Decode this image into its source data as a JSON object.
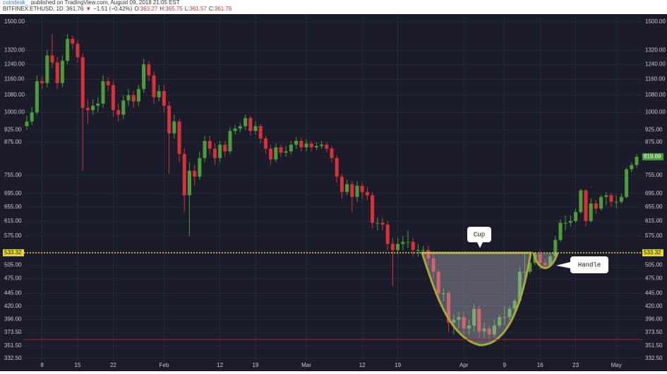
{
  "chart_data": {
    "type": "candlestick",
    "header": {
      "author": "coindesk_",
      "published": "published on TradingView.com, August 09, 2018 21:05 EST",
      "symbol": "BITFINEX:ETHUSD, 1D",
      "last": 361.76,
      "arrow": "▼",
      "change": "−1.51 (−0.42%)",
      "readout": [
        {
          "label": "O:",
          "value": 363.27
        },
        {
          "label": "H:",
          "value": 365.75
        },
        {
          "label": "L:",
          "value": 361.57
        },
        {
          "label": "C:",
          "value": 361.76
        }
      ]
    },
    "annotations": {
      "cup": "Cup",
      "handle": "Handle"
    },
    "level": 533.32,
    "up_color": "#4f9a3a",
    "down_color": "#d9313b",
    "level_color": "#e6dc2e",
    "cursor_color": "#b0202a",
    "log_scale": true,
    "grid": true,
    "ylim": [
      326,
      1543
    ],
    "yticks": [
      {
        "value": 1500,
        "label": "1500.00"
      },
      {
        "value": 1320,
        "label": "1320.00"
      },
      {
        "value": 1240,
        "label": "1240.00"
      },
      {
        "value": 1160,
        "label": "1160.00"
      },
      {
        "value": 1080,
        "label": "1080.00"
      },
      {
        "value": 1000,
        "label": "1000.00"
      },
      {
        "value": 925,
        "label": "925.00"
      },
      {
        "value": 875,
        "label": "875.00"
      },
      {
        "value": 755,
        "label": "755.00"
      },
      {
        "value": 695,
        "label": "695.00"
      },
      {
        "value": 655,
        "label": "655.00"
      },
      {
        "value": 615,
        "label": "615.00"
      },
      {
        "value": 575,
        "label": "575.00"
      },
      {
        "value": 505,
        "label": "505.00"
      },
      {
        "value": 475,
        "label": "475.00"
      },
      {
        "value": 445,
        "label": "445.00"
      },
      {
        "value": 420,
        "label": "420.00"
      },
      {
        "value": 396,
        "label": "396.00"
      },
      {
        "value": 373.5,
        "label": "373.50"
      },
      {
        "value": 351.5,
        "label": "351.50"
      },
      {
        "value": 332.5,
        "label": "332.50"
      }
    ],
    "categories": [
      null,
      null,
      null,
      "8",
      null,
      null,
      null,
      null,
      null,
      null,
      "15",
      null,
      null,
      null,
      null,
      null,
      null,
      "22",
      null,
      null,
      null,
      null,
      null,
      null,
      null,
      null,
      null,
      "Feb",
      null,
      null,
      null,
      null,
      null,
      null,
      null,
      null,
      null,
      null,
      "12",
      null,
      null,
      null,
      null,
      null,
      null,
      "19",
      null,
      null,
      null,
      null,
      null,
      null,
      null,
      null,
      null,
      "Mar",
      null,
      null,
      null,
      null,
      null,
      null,
      null,
      null,
      null,
      null,
      "12",
      null,
      null,
      null,
      null,
      null,
      null,
      "19",
      null,
      null,
      null,
      null,
      null,
      null,
      null,
      null,
      null,
      null,
      null,
      null,
      "Apr",
      null,
      null,
      null,
      null,
      null,
      null,
      null,
      "9",
      null,
      null,
      null,
      null,
      null,
      null,
      "16",
      null,
      null,
      null,
      null,
      null,
      null,
      "23",
      null,
      null,
      null,
      null,
      null,
      null,
      null,
      "May",
      null,
      null,
      null,
      null
    ],
    "open": [
      940,
      960,
      1000,
      1150,
      1140,
      1290,
      1250,
      1140,
      1260,
      1390,
      1360,
      1280,
      1020,
      1010,
      1030,
      1040,
      1150,
      1130,
      1010,
      990,
      1055,
      1080,
      1050,
      1110,
      1240,
      1180,
      1070,
      1100,
      1030,
      910,
      960,
      830,
      690,
      770,
      750,
      815,
      880,
      850,
      815,
      865,
      840,
      920,
      930,
      940,
      975,
      920,
      940,
      890,
      850,
      810,
      855,
      835,
      840,
      865,
      880,
      855,
      870,
      855,
      860,
      865,
      850,
      815,
      750,
      700,
      725,
      685,
      720,
      700,
      690,
      610,
      610,
      605,
      555,
      540,
      555,
      560,
      560,
      540,
      540,
      540,
      520,
      490,
      445,
      445,
      390,
      395,
      400,
      380,
      385,
      415,
      375,
      380,
      370,
      385,
      400,
      400,
      415,
      430,
      490,
      490,
      510,
      530,
      510,
      505,
      525,
      565,
      610,
      610,
      615,
      640,
      705,
      615,
      665,
      650,
      685,
      690,
      670,
      670,
      685,
      775,
      790
    ],
    "high": [
      985,
      1025,
      1180,
      1175,
      1320,
      1420,
      1280,
      1290,
      1420,
      1410,
      1380,
      1300,
      1060,
      1060,
      1070,
      1180,
      1170,
      1150,
      1040,
      1080,
      1110,
      1100,
      1130,
      1270,
      1260,
      1200,
      1130,
      1130,
      1050,
      990,
      970,
      850,
      800,
      790,
      840,
      900,
      900,
      870,
      880,
      880,
      935,
      945,
      955,
      990,
      985,
      960,
      950,
      900,
      865,
      870,
      865,
      860,
      880,
      895,
      890,
      885,
      880,
      875,
      880,
      875,
      860,
      825,
      760,
      740,
      735,
      735,
      730,
      715,
      700,
      625,
      625,
      615,
      570,
      570,
      575,
      590,
      570,
      555,
      550,
      550,
      530,
      495,
      455,
      450,
      405,
      410,
      410,
      395,
      425,
      420,
      390,
      385,
      395,
      405,
      420,
      420,
      435,
      500,
      530,
      520,
      535,
      540,
      520,
      530,
      575,
      620,
      630,
      630,
      650,
      710,
      710,
      680,
      675,
      690,
      700,
      695,
      690,
      695,
      780,
      800,
      830
    ],
    "low": [
      925,
      945,
      990,
      1110,
      1120,
      1220,
      1110,
      1120,
      1240,
      1330,
      1250,
      770,
      950,
      990,
      1000,
      1020,
      1100,
      980,
      960,
      970,
      1030,
      1020,
      1030,
      1090,
      1150,
      1040,
      1050,
      1000,
      760,
      890,
      800,
      640,
      575,
      720,
      740,
      800,
      830,
      790,
      800,
      820,
      830,
      905,
      915,
      925,
      900,
      905,
      870,
      830,
      790,
      800,
      820,
      820,
      830,
      850,
      840,
      840,
      840,
      845,
      850,
      835,
      800,
      730,
      680,
      690,
      640,
      670,
      680,
      675,
      595,
      590,
      590,
      540,
      460,
      530,
      540,
      545,
      525,
      525,
      525,
      505,
      475,
      430,
      430,
      375,
      370,
      380,
      370,
      370,
      375,
      365,
      365,
      360,
      365,
      380,
      385,
      395,
      410,
      425,
      470,
      485,
      505,
      495,
      495,
      500,
      520,
      560,
      590,
      600,
      610,
      635,
      600,
      610,
      635,
      645,
      660,
      655,
      650,
      665,
      680,
      765,
      780
    ],
    "close": [
      960,
      1000,
      1150,
      1140,
      1290,
      1250,
      1140,
      1260,
      1390,
      1360,
      1280,
      1020,
      1010,
      1030,
      1040,
      1150,
      1130,
      1010,
      990,
      1055,
      1080,
      1050,
      1110,
      1240,
      1180,
      1070,
      1100,
      1030,
      910,
      960,
      830,
      690,
      770,
      750,
      815,
      880,
      850,
      815,
      865,
      840,
      920,
      930,
      940,
      975,
      920,
      940,
      890,
      850,
      810,
      855,
      835,
      840,
      865,
      880,
      855,
      870,
      855,
      860,
      865,
      850,
      815,
      750,
      700,
      725,
      685,
      720,
      700,
      690,
      610,
      610,
      605,
      555,
      540,
      555,
      560,
      560,
      540,
      540,
      540,
      520,
      490,
      445,
      445,
      390,
      395,
      400,
      380,
      385,
      415,
      375,
      380,
      370,
      385,
      400,
      400,
      415,
      430,
      490,
      490,
      510,
      530,
      510,
      505,
      525,
      565,
      610,
      610,
      615,
      640,
      705,
      615,
      665,
      650,
      685,
      690,
      670,
      670,
      685,
      775,
      790,
      819.69
    ]
  }
}
